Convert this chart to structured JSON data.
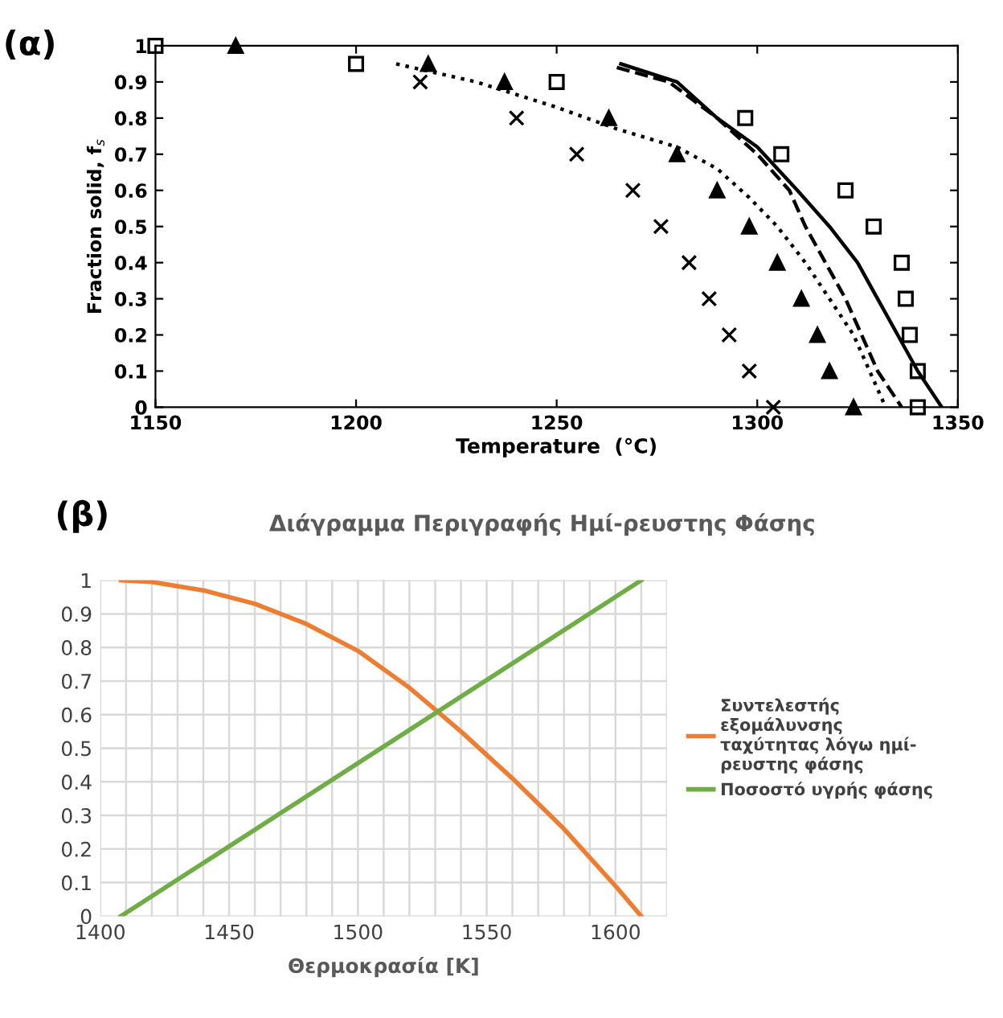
{
  "chart_data": [
    {
      "type": "scatter",
      "annotations": [
        "(α)"
      ],
      "xlabel": "Temperature  (°C)",
      "ylabel": "Fraction solid, f$_{s}$",
      "xlim": [
        1150,
        1350
      ],
      "ylim": [
        0,
        1
      ],
      "xticks": [
        1150,
        1200,
        1250,
        1300,
        1350
      ],
      "yticks": [
        0,
        0.1,
        0.2,
        0.3,
        0.4,
        0.5,
        0.6,
        0.7,
        0.8,
        0.9,
        1
      ],
      "grid": false,
      "legend": false,
      "series": [
        {
          "type": "scatter",
          "marker": "square",
          "color": "#000000",
          "x": [
            1150,
            1200,
            1250,
            1297,
            1306,
            1322,
            1329,
            1336,
            1337,
            1338,
            1340,
            1340
          ],
          "values": [
            1,
            0.95,
            0.9,
            0.8,
            0.7,
            0.6,
            0.5,
            0.4,
            0.3,
            0.2,
            0.1,
            0
          ]
        },
        {
          "type": "scatter",
          "marker": "triangle",
          "color": "#000000",
          "x": [
            1170,
            1218,
            1237,
            1263,
            1280,
            1290,
            1298,
            1305,
            1311,
            1315,
            1318,
            1324
          ],
          "values": [
            1,
            0.95,
            0.9,
            0.8,
            0.7,
            0.6,
            0.5,
            0.4,
            0.3,
            0.2,
            0.1,
            0
          ]
        },
        {
          "type": "scatter",
          "marker": "cross",
          "color": "#000000",
          "x": [
            1216,
            1240,
            1255,
            1269,
            1276,
            1283,
            1288,
            1293,
            1298,
            1304
          ],
          "values": [
            0.9,
            0.8,
            0.7,
            0.6,
            0.5,
            0.4,
            0.3,
            0.2,
            0.1,
            0
          ]
        },
        {
          "type": "line",
          "line_style": "solid",
          "color": "#000000",
          "x": [
            1266,
            1280,
            1290,
            1300,
            1310,
            1318,
            1325,
            1330,
            1335,
            1340,
            1346
          ],
          "values": [
            0.95,
            0.9,
            0.8,
            0.72,
            0.6,
            0.5,
            0.4,
            0.3,
            0.2,
            0.1,
            0
          ]
        },
        {
          "type": "line",
          "line_style": "dashed",
          "color": "#000000",
          "x": [
            1265,
            1278,
            1290,
            1300,
            1308,
            1312,
            1317,
            1322,
            1326,
            1330,
            1336
          ],
          "values": [
            0.94,
            0.9,
            0.8,
            0.7,
            0.6,
            0.5,
            0.4,
            0.3,
            0.2,
            0.1,
            0
          ]
        },
        {
          "type": "line",
          "line_style": "dotted",
          "color": "#000000",
          "x": [
            1210,
            1230,
            1250,
            1265,
            1280,
            1290,
            1298,
            1305,
            1312,
            1318,
            1324,
            1328,
            1332
          ],
          "values": [
            0.95,
            0.9,
            0.83,
            0.77,
            0.72,
            0.66,
            0.58,
            0.5,
            0.4,
            0.3,
            0.2,
            0.1,
            0
          ]
        }
      ]
    },
    {
      "type": "line",
      "annotations": [
        "(β)"
      ],
      "title": "Διάγραμμα Περιγραφής Ημί-ρευστης Φάσης",
      "xlabel": "Θερμοκρασία [K]",
      "xlim": [
        1400,
        1620
      ],
      "ylim": [
        0,
        1
      ],
      "xticks": [
        1400,
        {
          "value": 1410,
          "label": null
        },
        {
          "value": 1420,
          "label": null
        },
        {
          "value": 1430,
          "label": null
        },
        {
          "value": 1440,
          "label": null
        },
        1450,
        {
          "value": 1460,
          "label": null
        },
        {
          "value": 1470,
          "label": null
        },
        {
          "value": 1480,
          "label": null
        },
        {
          "value": 1490,
          "label": null
        },
        1500,
        {
          "value": 1510,
          "label": null
        },
        {
          "value": 1520,
          "label": null
        },
        {
          "value": 1530,
          "label": null
        },
        {
          "value": 1540,
          "label": null
        },
        1550,
        {
          "value": 1560,
          "label": null
        },
        {
          "value": 1570,
          "label": null
        },
        {
          "value": 1580,
          "label": null
        },
        {
          "value": 1590,
          "label": null
        },
        1600,
        {
          "value": 1610,
          "label": null
        },
        {
          "value": 1620,
          "label": null
        }
      ],
      "yticks": [
        0,
        0.1,
        0.2,
        0.3,
        0.4,
        0.5,
        0.6,
        0.7,
        0.8,
        0.9,
        1
      ],
      "grid": true,
      "legend": "right",
      "series": [
        {
          "name": "Συντελεστής\nεξομάλυνσης\nταχύτητας λόγω ημί-\nρευστης φάσης",
          "color": "#ed7d31",
          "x": [
            1408,
            1420,
            1440,
            1460,
            1480,
            1500,
            1520,
            1530,
            1540,
            1560,
            1580,
            1600,
            1610
          ],
          "values": [
            1,
            0.995,
            0.97,
            0.93,
            0.87,
            0.79,
            0.68,
            0.615,
            0.55,
            0.41,
            0.26,
            0.09,
            0
          ]
        },
        {
          "name": "Ποσοστό υγρής φάσης",
          "color": "#70ad47",
          "x": [
            1408,
            1610
          ],
          "values": [
            0,
            1
          ]
        }
      ]
    }
  ]
}
